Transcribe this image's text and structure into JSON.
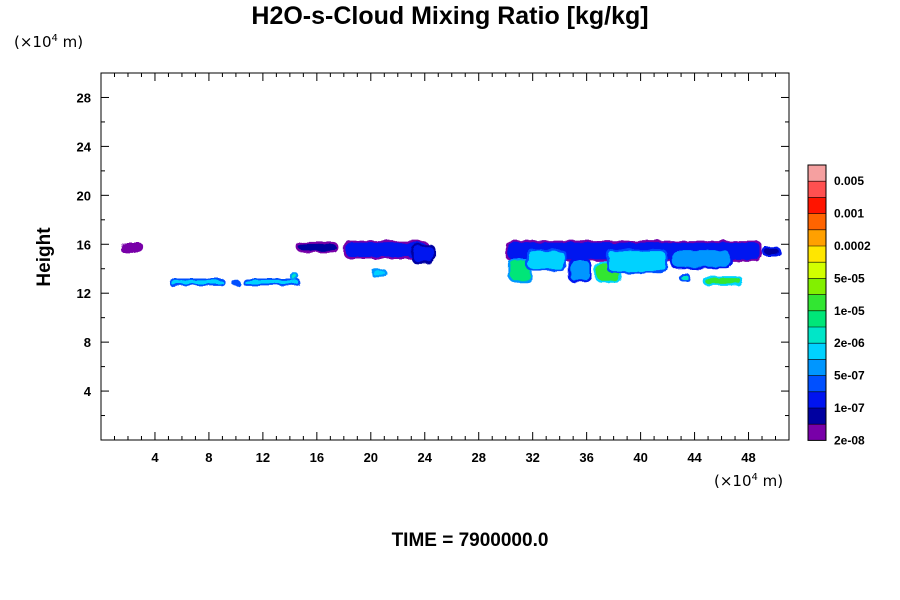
{
  "chart_data": {
    "type": "heatmap",
    "title": "H2O-s-Cloud Mixing Ratio [kg/kg]",
    "ylabel": "Height",
    "xlabel": "",
    "x_unit": "10^4 m",
    "y_unit": "10^4 m",
    "x_unit_parts": {
      "pre": "(×10",
      "exp": "4",
      "post": " m)"
    },
    "y_unit_parts": {
      "pre": "(×10",
      "exp": "4",
      "post": " m)"
    },
    "xlim": [
      0,
      51
    ],
    "ylim": [
      0,
      30
    ],
    "x_ticks": [
      4,
      8,
      12,
      16,
      20,
      24,
      28,
      32,
      36,
      40,
      44,
      48
    ],
    "x_tick_labels": [
      "4",
      "8",
      "12",
      "16",
      "20",
      "24",
      "28",
      "32",
      "36",
      "40",
      "44",
      "48"
    ],
    "y_ticks": [
      4,
      8,
      12,
      16,
      20,
      24,
      28
    ],
    "y_tick_labels": [
      "4",
      "8",
      "12",
      "16",
      "20",
      "24",
      "28"
    ],
    "grid": false,
    "legend": {
      "placement": "right",
      "colors": [
        "#f5a0a0",
        "#ff5050",
        "#ff1400",
        "#ff6400",
        "#ffa000",
        "#ffe600",
        "#d2ff00",
        "#82f000",
        "#32e632",
        "#00e678",
        "#00e6c8",
        "#00d2ff",
        "#0096ff",
        "#0050ff",
        "#0014f0",
        "#0000a0",
        "#7800a8"
      ],
      "labels": [
        {
          "text": "0.005",
          "index": 1
        },
        {
          "text": "0.001",
          "index": 3
        },
        {
          "text": "0.0002",
          "index": 5
        },
        {
          "text": "5e-05",
          "index": 7
        },
        {
          "text": "1e-05",
          "index": 9
        },
        {
          "text": "2e-06",
          "index": 11
        },
        {
          "text": "5e-07",
          "index": 13
        },
        {
          "text": "1e-07",
          "index": 15
        },
        {
          "text": "2e-08",
          "index": 17
        }
      ]
    },
    "cloud_patches": [
      {
        "x": [
          1.4,
          3.2
        ],
        "y": [
          15.3,
          16.1
        ],
        "core": "#7800a8",
        "edge": "#7800a8"
      },
      {
        "x": [
          5.0,
          9.2
        ],
        "y": [
          12.6,
          13.2
        ],
        "core": "#00d2ff",
        "edge": "#0050ff"
      },
      {
        "x": [
          9.7,
          10.3
        ],
        "y": [
          12.6,
          13.1
        ],
        "core": "#0050ff",
        "edge": "#0050ff"
      },
      {
        "x": [
          10.5,
          14.8
        ],
        "y": [
          12.6,
          13.2
        ],
        "core": "#00d2ff",
        "edge": "#0050ff"
      },
      {
        "x": [
          14.0,
          14.6
        ],
        "y": [
          13.0,
          13.8
        ],
        "core": "#00e6c8",
        "edge": "#0096ff"
      },
      {
        "x": [
          14.5,
          17.6
        ],
        "y": [
          15.3,
          16.2
        ],
        "core": "#0000a0",
        "edge": "#7800a8"
      },
      {
        "x": [
          18.0,
          24.3
        ],
        "y": [
          14.8,
          16.3
        ],
        "core": "#0014f0",
        "edge": "#7800a8"
      },
      {
        "x": [
          23.0,
          24.8
        ],
        "y": [
          14.4,
          16.0
        ],
        "core": "#0014f0",
        "edge": "#0000a0"
      },
      {
        "x": [
          20.0,
          21.2
        ],
        "y": [
          13.3,
          14.0
        ],
        "core": "#00d2ff",
        "edge": "#0096ff"
      },
      {
        "x": [
          30.0,
          49.0
        ],
        "y": [
          14.6,
          16.3
        ],
        "core": "#0014f0",
        "edge": "#7800a8"
      },
      {
        "x": [
          30.2,
          32.0
        ],
        "y": [
          12.9,
          14.8
        ],
        "core": "#00e678",
        "edge": "#0096ff"
      },
      {
        "x": [
          31.5,
          34.5
        ],
        "y": [
          13.8,
          15.6
        ],
        "core": "#00d2ff",
        "edge": "#0050ff"
      },
      {
        "x": [
          34.6,
          36.4
        ],
        "y": [
          12.9,
          14.8
        ],
        "core": "#0096ff",
        "edge": "#0014f0"
      },
      {
        "x": [
          36.6,
          38.6
        ],
        "y": [
          12.9,
          14.6
        ],
        "core": "#32e632",
        "edge": "#00d2ff"
      },
      {
        "x": [
          37.5,
          42.0
        ],
        "y": [
          13.6,
          15.6
        ],
        "core": "#00d2ff",
        "edge": "#0050ff"
      },
      {
        "x": [
          42.2,
          46.8
        ],
        "y": [
          14.0,
          15.6
        ],
        "core": "#0096ff",
        "edge": "#0014f0"
      },
      {
        "x": [
          42.8,
          43.7
        ],
        "y": [
          13.0,
          13.6
        ],
        "core": "#00e6c8",
        "edge": "#0050ff"
      },
      {
        "x": [
          44.6,
          47.6
        ],
        "y": [
          12.6,
          13.4
        ],
        "core": "#32e632",
        "edge": "#00d2ff"
      },
      {
        "x": [
          49.0,
          50.4
        ],
        "y": [
          15.0,
          15.8
        ],
        "core": "#0000a0",
        "edge": "#0014f0"
      }
    ]
  },
  "footer": {
    "time_label": "TIME = 7900000.0"
  }
}
